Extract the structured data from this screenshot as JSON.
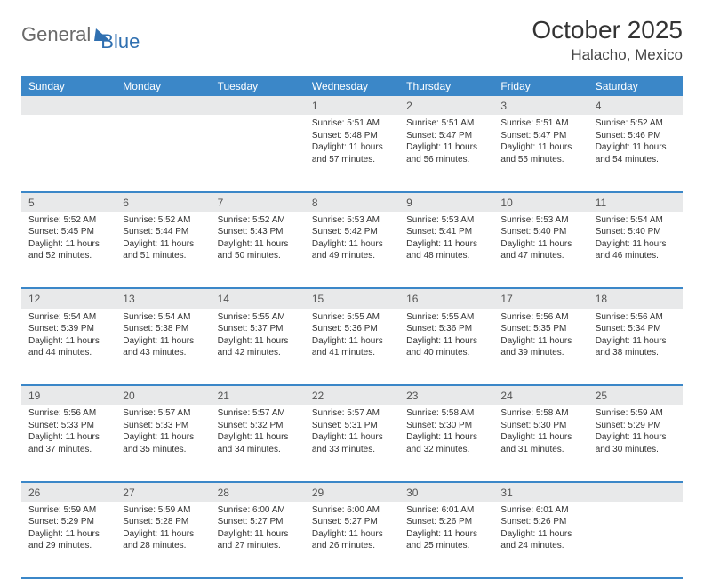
{
  "logo": {
    "part1": "General",
    "part2": "Blue"
  },
  "title": "October 2025",
  "location": "Halacho, Mexico",
  "colors": {
    "header_bg": "#3b87c8",
    "header_text": "#ffffff",
    "daynum_bg": "#e8e9ea",
    "rule": "#3b87c8",
    "logo_gray": "#6a6a6a",
    "logo_blue": "#2f6fb0",
    "body_text": "#333333"
  },
  "typography": {
    "month_title_pt": 28,
    "location_pt": 17,
    "weekday_pt": 12,
    "daynum_pt": 12,
    "cell_pt": 10
  },
  "weekdays": [
    "Sunday",
    "Monday",
    "Tuesday",
    "Wednesday",
    "Thursday",
    "Friday",
    "Saturday"
  ],
  "weeks": [
    [
      null,
      null,
      null,
      {
        "n": "1",
        "sr": "5:51 AM",
        "ss": "5:48 PM",
        "dl": "11 hours and 57 minutes."
      },
      {
        "n": "2",
        "sr": "5:51 AM",
        "ss": "5:47 PM",
        "dl": "11 hours and 56 minutes."
      },
      {
        "n": "3",
        "sr": "5:51 AM",
        "ss": "5:47 PM",
        "dl": "11 hours and 55 minutes."
      },
      {
        "n": "4",
        "sr": "5:52 AM",
        "ss": "5:46 PM",
        "dl": "11 hours and 54 minutes."
      }
    ],
    [
      {
        "n": "5",
        "sr": "5:52 AM",
        "ss": "5:45 PM",
        "dl": "11 hours and 52 minutes."
      },
      {
        "n": "6",
        "sr": "5:52 AM",
        "ss": "5:44 PM",
        "dl": "11 hours and 51 minutes."
      },
      {
        "n": "7",
        "sr": "5:52 AM",
        "ss": "5:43 PM",
        "dl": "11 hours and 50 minutes."
      },
      {
        "n": "8",
        "sr": "5:53 AM",
        "ss": "5:42 PM",
        "dl": "11 hours and 49 minutes."
      },
      {
        "n": "9",
        "sr": "5:53 AM",
        "ss": "5:41 PM",
        "dl": "11 hours and 48 minutes."
      },
      {
        "n": "10",
        "sr": "5:53 AM",
        "ss": "5:40 PM",
        "dl": "11 hours and 47 minutes."
      },
      {
        "n": "11",
        "sr": "5:54 AM",
        "ss": "5:40 PM",
        "dl": "11 hours and 46 minutes."
      }
    ],
    [
      {
        "n": "12",
        "sr": "5:54 AM",
        "ss": "5:39 PM",
        "dl": "11 hours and 44 minutes."
      },
      {
        "n": "13",
        "sr": "5:54 AM",
        "ss": "5:38 PM",
        "dl": "11 hours and 43 minutes."
      },
      {
        "n": "14",
        "sr": "5:55 AM",
        "ss": "5:37 PM",
        "dl": "11 hours and 42 minutes."
      },
      {
        "n": "15",
        "sr": "5:55 AM",
        "ss": "5:36 PM",
        "dl": "11 hours and 41 minutes."
      },
      {
        "n": "16",
        "sr": "5:55 AM",
        "ss": "5:36 PM",
        "dl": "11 hours and 40 minutes."
      },
      {
        "n": "17",
        "sr": "5:56 AM",
        "ss": "5:35 PM",
        "dl": "11 hours and 39 minutes."
      },
      {
        "n": "18",
        "sr": "5:56 AM",
        "ss": "5:34 PM",
        "dl": "11 hours and 38 minutes."
      }
    ],
    [
      {
        "n": "19",
        "sr": "5:56 AM",
        "ss": "5:33 PM",
        "dl": "11 hours and 37 minutes."
      },
      {
        "n": "20",
        "sr": "5:57 AM",
        "ss": "5:33 PM",
        "dl": "11 hours and 35 minutes."
      },
      {
        "n": "21",
        "sr": "5:57 AM",
        "ss": "5:32 PM",
        "dl": "11 hours and 34 minutes."
      },
      {
        "n": "22",
        "sr": "5:57 AM",
        "ss": "5:31 PM",
        "dl": "11 hours and 33 minutes."
      },
      {
        "n": "23",
        "sr": "5:58 AM",
        "ss": "5:30 PM",
        "dl": "11 hours and 32 minutes."
      },
      {
        "n": "24",
        "sr": "5:58 AM",
        "ss": "5:30 PM",
        "dl": "11 hours and 31 minutes."
      },
      {
        "n": "25",
        "sr": "5:59 AM",
        "ss": "5:29 PM",
        "dl": "11 hours and 30 minutes."
      }
    ],
    [
      {
        "n": "26",
        "sr": "5:59 AM",
        "ss": "5:29 PM",
        "dl": "11 hours and 29 minutes."
      },
      {
        "n": "27",
        "sr": "5:59 AM",
        "ss": "5:28 PM",
        "dl": "11 hours and 28 minutes."
      },
      {
        "n": "28",
        "sr": "6:00 AM",
        "ss": "5:27 PM",
        "dl": "11 hours and 27 minutes."
      },
      {
        "n": "29",
        "sr": "6:00 AM",
        "ss": "5:27 PM",
        "dl": "11 hours and 26 minutes."
      },
      {
        "n": "30",
        "sr": "6:01 AM",
        "ss": "5:26 PM",
        "dl": "11 hours and 25 minutes."
      },
      {
        "n": "31",
        "sr": "6:01 AM",
        "ss": "5:26 PM",
        "dl": "11 hours and 24 minutes."
      },
      null
    ]
  ],
  "labels": {
    "sunrise": "Sunrise: ",
    "sunset": "Sunset: ",
    "daylight": "Daylight: "
  }
}
